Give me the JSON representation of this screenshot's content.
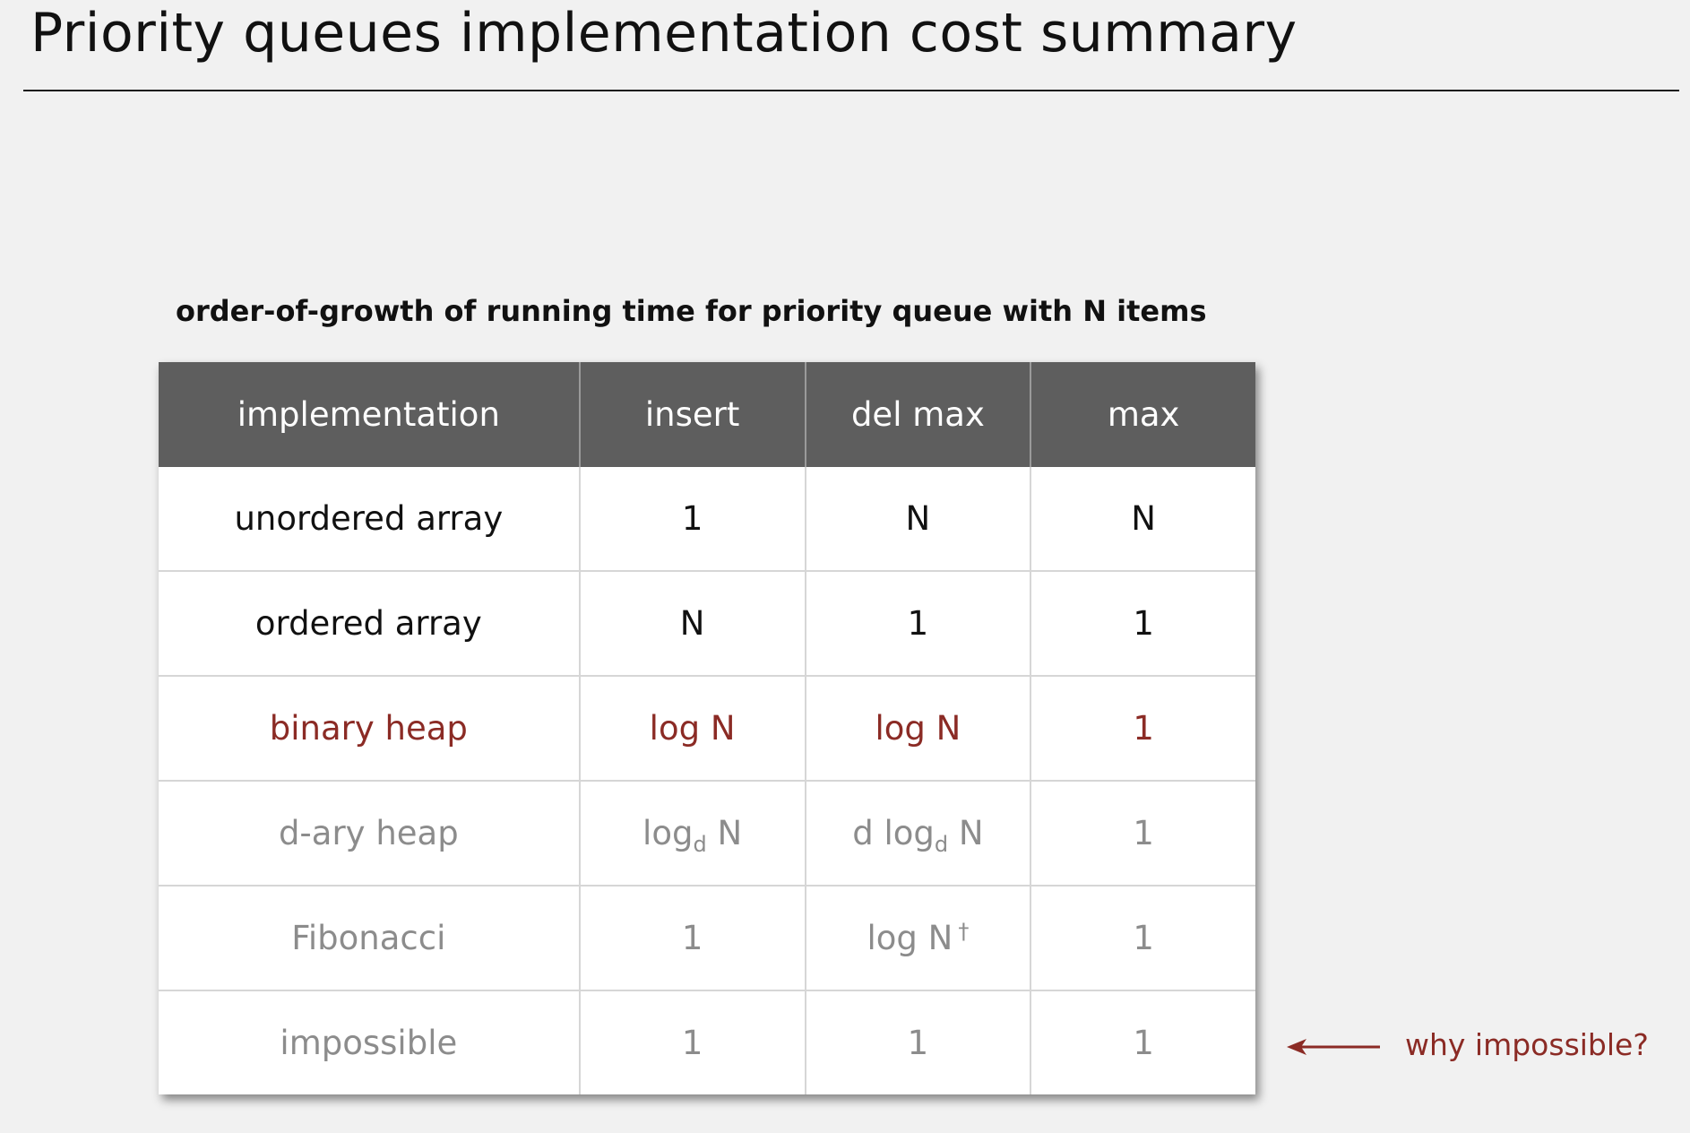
{
  "title": "Priority queues implementation cost summary",
  "caption": "order-of-growth of running time for priority queue with N items",
  "colors": {
    "background": "#f1f1f1",
    "header": "#5e5e5e",
    "accent": "#8b2b25",
    "muted": "#8c8c8c"
  },
  "table": {
    "headers": [
      "implementation",
      "insert",
      "del max",
      "max"
    ],
    "rows": [
      {
        "tone": "primary",
        "implementation": "unordered array",
        "insert": {
          "text": "1"
        },
        "del_max": {
          "text": "N"
        },
        "max": {
          "text": "N"
        }
      },
      {
        "tone": "primary",
        "implementation": "ordered array",
        "insert": {
          "text": "N"
        },
        "del_max": {
          "text": "1"
        },
        "max": {
          "text": "1"
        }
      },
      {
        "tone": "highlight",
        "implementation": "binary heap",
        "insert": {
          "text": "log N"
        },
        "del_max": {
          "text": "log N"
        },
        "max": {
          "text": "1"
        }
      },
      {
        "tone": "muted",
        "implementation": "d-ary heap",
        "insert": {
          "pre": "log",
          "sub": "d",
          "post": " N"
        },
        "del_max": {
          "pre": "d log",
          "sub": "d",
          "post": " N"
        },
        "max": {
          "text": "1"
        }
      },
      {
        "tone": "muted",
        "implementation": "Fibonacci",
        "insert": {
          "text": "1"
        },
        "del_max": {
          "text": "log N",
          "mark": "†"
        },
        "max": {
          "text": "1"
        }
      },
      {
        "tone": "muted",
        "implementation": "impossible",
        "insert": {
          "text": "1"
        },
        "del_max": {
          "text": "1"
        },
        "max": {
          "text": "1"
        }
      }
    ]
  },
  "annotation": {
    "text": "why impossible?",
    "icon": "left-arrow-icon"
  }
}
